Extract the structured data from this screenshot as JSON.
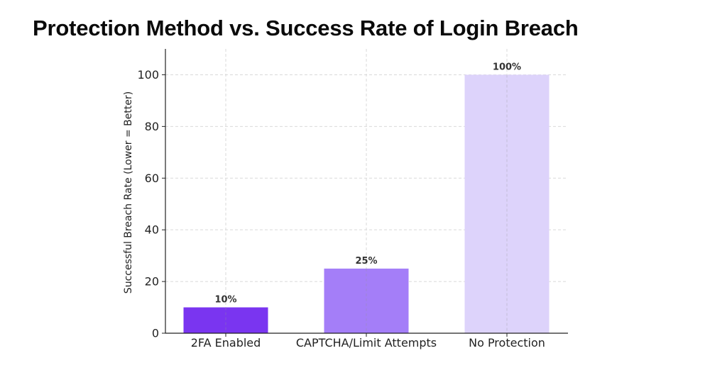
{
  "title": "Protection Method vs. Success Rate of Login Breach",
  "chart_data": {
    "type": "bar",
    "title": "Protection Method vs. Success Rate of Login Breach",
    "categories": [
      "2FA Enabled",
      "CAPTCHA/Limit Attempts",
      "No Protection"
    ],
    "values": [
      10,
      25,
      100
    ],
    "data_labels": [
      "10%",
      "25%",
      "100%"
    ],
    "bar_colors": [
      "#7a35f0",
      "#a47ef8",
      "#ddd3fb"
    ],
    "xlabel": "",
    "ylabel": "Successful Breach Rate (Lower = Better)",
    "ylim": [
      0,
      110
    ],
    "yticks": [
      0,
      20,
      40,
      60,
      80,
      100
    ],
    "grid": true,
    "legend": "none"
  }
}
